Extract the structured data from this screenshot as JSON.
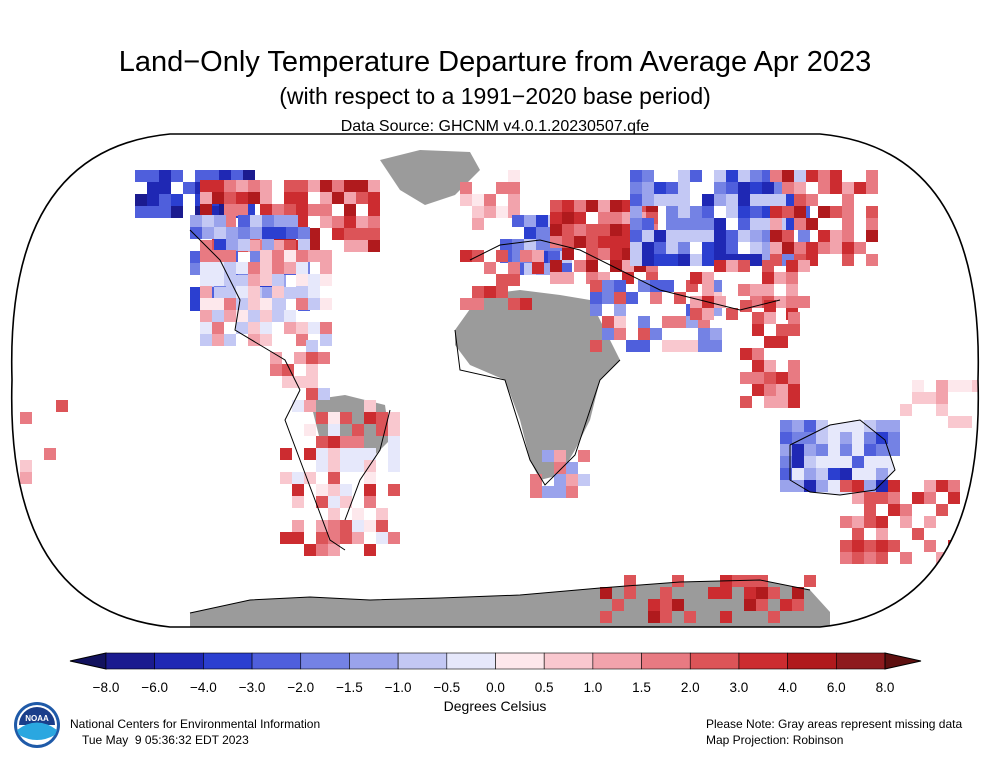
{
  "title": "Land−Only Temperature Departure from Average Apr 2023",
  "subtitle": "(with respect to a 1991−2020 base period)",
  "source": "Data Source: GHCNM v4.0.1.20230507.qfe",
  "colorbar": {
    "label": "Degrees Celsius",
    "ticks": [
      "−8.0",
      "−6.0",
      "−4.0",
      "−3.0",
      "−2.0",
      "−1.5",
      "−1.0",
      "−0.5",
      "0.0",
      "0.5",
      "1.0",
      "1.5",
      "2.0",
      "3.0",
      "4.0",
      "6.0",
      "8.0"
    ],
    "colors": [
      "#1b1b8f",
      "#1f28b4",
      "#2b3fd0",
      "#4f5fdc",
      "#7482e4",
      "#9aa3ec",
      "#c3c8f4",
      "#e6e8fb",
      "#fde8ec",
      "#f9c8cf",
      "#f2a3ac",
      "#e87a82",
      "#dc5458",
      "#cc2c30",
      "#b01a1d",
      "#8e1b1e"
    ]
  },
  "footer": {
    "org": "National Centers for Environmental Information",
    "timestamp": "Tue May  9 05:36:32 EDT 2023",
    "note": "Please Note: Gray areas represent missing data",
    "projection": "Map Projection: Robinson",
    "logo_text": "NOAA"
  },
  "missing_color": "#9b9b9b"
}
